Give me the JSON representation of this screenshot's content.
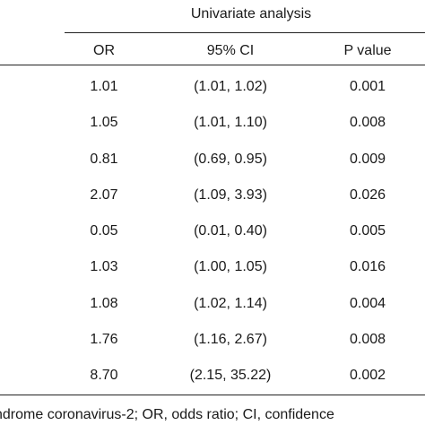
{
  "table": {
    "group_header": "Univariate analysis",
    "columns": [
      "OR",
      "95% CI",
      "P value"
    ],
    "rows": [
      {
        "or": "1.01",
        "ci": "(1.01, 1.02)",
        "p": "0.001"
      },
      {
        "or": "1.05",
        "ci": "(1.01, 1.10)",
        "p": "0.008"
      },
      {
        "or": "0.81",
        "ci": "(0.69, 0.95)",
        "p": "0.009"
      },
      {
        "or": "2.07",
        "ci": "(1.09, 3.93)",
        "p": "0.026"
      },
      {
        "or": "0.05",
        "ci": "(0.01, 0.40)",
        "p": "0.005"
      },
      {
        "or": "1.03",
        "ci": "(1.00, 1.05)",
        "p": "0.016"
      },
      {
        "or": "1.08",
        "ci": "(1.02, 1.14)",
        "p": "0.004"
      },
      {
        "or": "1.76",
        "ci": "(1.16, 2.67)",
        "p": "0.008"
      },
      {
        "or": "8.70",
        "ci": "(2.15, 35.22)",
        "p": "0.002"
      }
    ]
  },
  "footnote": "ndrome coronavirus-2; OR, odds ratio; CI, confidence"
}
